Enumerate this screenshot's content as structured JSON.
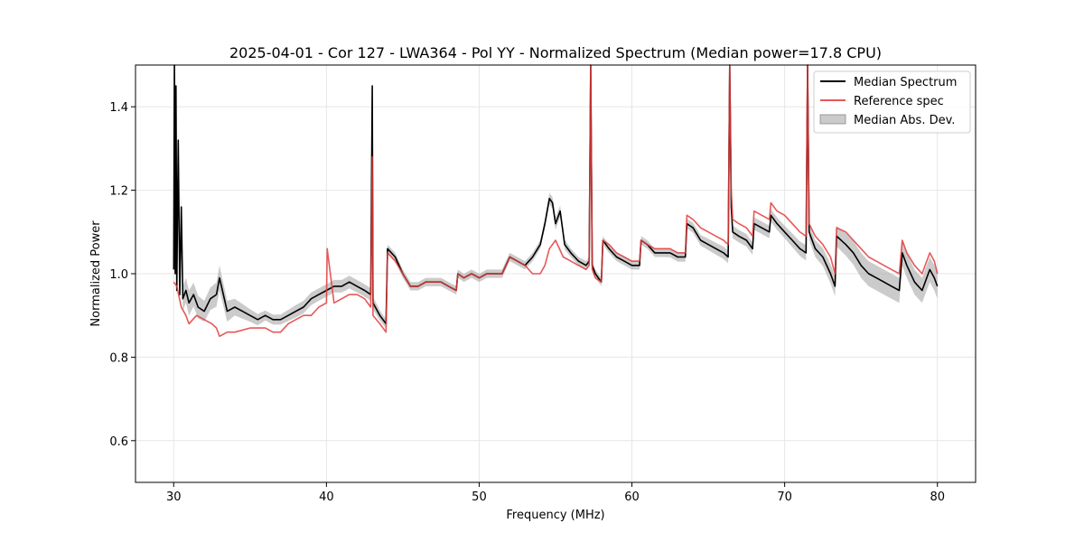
{
  "chart_data": {
    "type": "line",
    "title": "2025-04-01 - Cor 127 - LWA364 - Pol YY - Normalized Spectrum (Median power=17.8 CPU)",
    "xlabel": "Frequency (MHz)",
    "ylabel": "Normalized Power",
    "xlim": [
      27.5,
      82.5
    ],
    "ylim": [
      0.5,
      1.5
    ],
    "xticks": [
      30,
      40,
      50,
      60,
      70,
      80
    ],
    "yticks": [
      0.6,
      0.8,
      1.0,
      1.2,
      1.4
    ],
    "xtick_labels": [
      "30",
      "40",
      "50",
      "60",
      "70",
      "80"
    ],
    "ytick_labels": [
      "0.6",
      "0.8",
      "1.0",
      "1.2",
      "1.4"
    ],
    "grid": true,
    "legend_position": "top-right",
    "colors": {
      "median": "#000000",
      "reference": "#e33b3b",
      "mad_band": "#a8a8a8"
    },
    "series": [
      {
        "name": "Median Spectrum",
        "x": [
          30.0,
          30.05,
          30.1,
          30.15,
          30.2,
          30.3,
          30.4,
          30.5,
          30.6,
          30.8,
          31.0,
          31.3,
          31.6,
          32.0,
          32.4,
          32.8,
          33.0,
          33.5,
          34.0,
          34.5,
          35.0,
          35.5,
          36.0,
          36.5,
          37.0,
          37.5,
          38.0,
          38.5,
          39.0,
          39.5,
          40.0,
          40.5,
          41.0,
          41.5,
          42.0,
          42.5,
          42.9,
          43.0,
          43.05,
          43.5,
          43.9,
          44.0,
          44.5,
          45.0,
          45.5,
          46.0,
          46.5,
          47.0,
          47.5,
          48.0,
          48.5,
          48.6,
          49.0,
          49.5,
          50.0,
          50.5,
          51.0,
          51.5,
          52.0,
          52.5,
          53.0,
          53.5,
          54.0,
          54.3,
          54.6,
          54.8,
          55.0,
          55.3,
          55.6,
          56.0,
          56.5,
          57.0,
          57.2,
          57.3,
          57.4,
          57.6,
          58.0,
          58.1,
          58.5,
          59.0,
          59.5,
          60.0,
          60.5,
          60.6,
          61.0,
          61.5,
          62.0,
          62.5,
          63.0,
          63.5,
          63.6,
          64.0,
          64.5,
          65.0,
          65.5,
          66.0,
          66.3,
          66.4,
          66.5,
          66.6,
          67.0,
          67.5,
          67.9,
          68.0,
          68.5,
          69.0,
          69.1,
          69.5,
          70.0,
          70.5,
          71.0,
          71.4,
          71.5,
          71.6,
          72.0,
          72.5,
          73.0,
          73.3,
          73.4,
          74.0,
          74.5,
          75.0,
          75.5,
          76.0,
          76.5,
          77.0,
          77.5,
          77.7,
          78.0,
          78.5,
          79.0,
          79.5,
          79.8,
          80.0
        ],
        "y": [
          1.01,
          1.5,
          1.0,
          1.45,
          0.96,
          1.32,
          0.95,
          1.16,
          0.94,
          0.96,
          0.93,
          0.95,
          0.92,
          0.91,
          0.94,
          0.95,
          0.99,
          0.91,
          0.92,
          0.91,
          0.9,
          0.89,
          0.9,
          0.89,
          0.89,
          0.9,
          0.91,
          0.92,
          0.94,
          0.95,
          0.96,
          0.97,
          0.97,
          0.98,
          0.97,
          0.96,
          0.95,
          1.45,
          0.93,
          0.9,
          0.88,
          1.06,
          1.04,
          1.0,
          0.97,
          0.97,
          0.98,
          0.98,
          0.98,
          0.97,
          0.96,
          1.0,
          0.99,
          1.0,
          0.99,
          1.0,
          1.0,
          1.0,
          1.04,
          1.03,
          1.02,
          1.04,
          1.07,
          1.12,
          1.18,
          1.17,
          1.12,
          1.15,
          1.07,
          1.05,
          1.03,
          1.02,
          1.03,
          1.5,
          1.02,
          1.0,
          0.98,
          1.08,
          1.06,
          1.04,
          1.03,
          1.02,
          1.02,
          1.08,
          1.07,
          1.05,
          1.05,
          1.05,
          1.04,
          1.04,
          1.12,
          1.11,
          1.08,
          1.07,
          1.06,
          1.05,
          1.04,
          1.5,
          1.16,
          1.1,
          1.09,
          1.08,
          1.06,
          1.12,
          1.11,
          1.1,
          1.14,
          1.12,
          1.1,
          1.08,
          1.06,
          1.05,
          1.5,
          1.1,
          1.06,
          1.04,
          1.0,
          0.97,
          1.09,
          1.07,
          1.05,
          1.02,
          1.0,
          0.99,
          0.98,
          0.97,
          0.96,
          1.05,
          1.02,
          0.98,
          0.96,
          1.01,
          0.99,
          0.97
        ]
      },
      {
        "name": "Reference spec",
        "x": [
          30.0,
          30.2,
          30.5,
          30.8,
          31.0,
          31.5,
          32.0,
          32.5,
          32.8,
          33.0,
          33.5,
          34.0,
          35.0,
          36.0,
          36.5,
          37.0,
          37.5,
          38.0,
          38.5,
          39.0,
          39.5,
          40.0,
          40.05,
          40.5,
          41.0,
          41.5,
          42.0,
          42.5,
          42.9,
          43.0,
          43.05,
          43.5,
          43.9,
          44.0,
          44.5,
          45.0,
          45.5,
          46.0,
          46.5,
          47.0,
          47.5,
          48.0,
          48.5,
          48.6,
          49.0,
          49.5,
          50.0,
          50.5,
          51.0,
          51.5,
          52.0,
          52.5,
          53.0,
          53.5,
          54.0,
          54.3,
          54.6,
          55.0,
          55.5,
          56.0,
          56.5,
          57.0,
          57.2,
          57.3,
          57.4,
          57.6,
          58.0,
          58.1,
          58.5,
          59.0,
          59.5,
          60.0,
          60.5,
          60.6,
          61.0,
          61.5,
          62.0,
          62.5,
          63.0,
          63.5,
          63.6,
          64.0,
          64.5,
          65.0,
          65.5,
          66.0,
          66.3,
          66.4,
          66.5,
          66.6,
          67.0,
          67.5,
          67.9,
          68.0,
          68.5,
          69.0,
          69.1,
          69.5,
          70.0,
          70.5,
          71.0,
          71.4,
          71.5,
          71.6,
          72.0,
          72.5,
          73.0,
          73.3,
          73.4,
          74.0,
          74.5,
          75.0,
          75.5,
          76.0,
          76.5,
          77.0,
          77.5,
          77.7,
          78.0,
          78.5,
          79.0,
          79.5,
          79.8,
          80.0
        ],
        "y": [
          0.98,
          0.97,
          0.92,
          0.9,
          0.88,
          0.9,
          0.89,
          0.88,
          0.87,
          0.85,
          0.86,
          0.86,
          0.87,
          0.87,
          0.86,
          0.86,
          0.88,
          0.89,
          0.9,
          0.9,
          0.92,
          0.93,
          1.06,
          0.93,
          0.94,
          0.95,
          0.95,
          0.94,
          0.92,
          1.28,
          0.9,
          0.88,
          0.86,
          1.05,
          1.03,
          1.0,
          0.97,
          0.97,
          0.98,
          0.98,
          0.98,
          0.97,
          0.96,
          1.0,
          0.99,
          1.0,
          0.99,
          1.0,
          1.0,
          1.0,
          1.04,
          1.03,
          1.02,
          1.0,
          1.0,
          1.02,
          1.06,
          1.08,
          1.04,
          1.03,
          1.02,
          1.01,
          1.02,
          1.5,
          1.01,
          0.99,
          0.98,
          1.08,
          1.07,
          1.05,
          1.04,
          1.03,
          1.03,
          1.08,
          1.07,
          1.06,
          1.06,
          1.06,
          1.05,
          1.05,
          1.14,
          1.13,
          1.11,
          1.1,
          1.09,
          1.08,
          1.07,
          1.5,
          1.2,
          1.13,
          1.12,
          1.11,
          1.09,
          1.15,
          1.14,
          1.13,
          1.17,
          1.15,
          1.14,
          1.12,
          1.1,
          1.09,
          1.5,
          1.12,
          1.09,
          1.07,
          1.04,
          1.0,
          1.11,
          1.1,
          1.08,
          1.06,
          1.04,
          1.03,
          1.02,
          1.01,
          1.0,
          1.08,
          1.05,
          1.02,
          1.0,
          1.05,
          1.03,
          1.0
        ]
      },
      {
        "name": "Median Abs. Dev.",
        "x": [
          30.0,
          31.0,
          32.0,
          33.0,
          34.0,
          35.0,
          36.0,
          37.0,
          38.0,
          39.0,
          40.0,
          41.0,
          42.0,
          43.0,
          44.0,
          46.0,
          48.0,
          50.0,
          52.0,
          54.0,
          55.0,
          56.0,
          58.0,
          60.0,
          62.0,
          64.0,
          66.0,
          68.0,
          70.0,
          72.0,
          73.5,
          75.0,
          76.0,
          77.0,
          78.0,
          79.0,
          80.0
        ],
        "spread": [
          0.03,
          0.03,
          0.025,
          0.03,
          0.02,
          0.015,
          0.012,
          0.012,
          0.015,
          0.015,
          0.015,
          0.015,
          0.015,
          0.015,
          0.01,
          0.01,
          0.01,
          0.01,
          0.01,
          0.01,
          0.015,
          0.01,
          0.01,
          0.01,
          0.01,
          0.012,
          0.015,
          0.015,
          0.015,
          0.02,
          0.025,
          0.03,
          0.03,
          0.03,
          0.03,
          0.03,
          0.03
        ]
      }
    ]
  }
}
